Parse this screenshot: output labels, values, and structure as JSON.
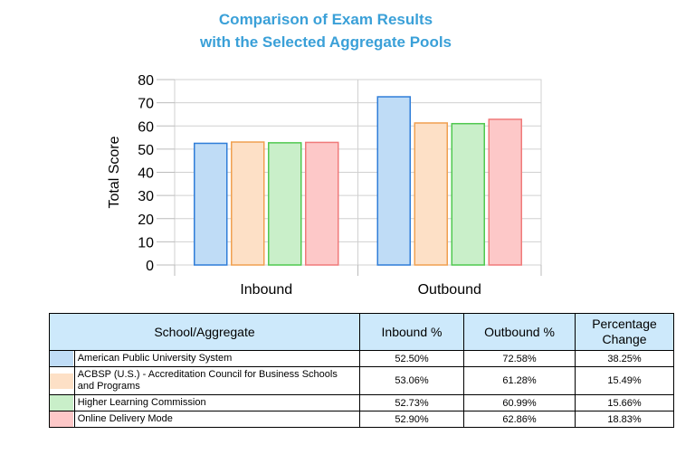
{
  "chart_data": {
    "type": "bar",
    "title_lines": [
      "Comparison of Exam Results",
      "with the Selected Aggregate Pools"
    ],
    "xlabel": "",
    "ylabel": "Total Score",
    "ylim": [
      0,
      80
    ],
    "yticks": [
      0,
      10,
      20,
      30,
      40,
      50,
      60,
      70,
      80
    ],
    "grid": true,
    "categories": [
      "Inbound",
      "Outbound"
    ],
    "series": [
      {
        "name": "American Public University System",
        "values": [
          52.5,
          72.58
        ],
        "fill": "#bfdcf6",
        "stroke": "#2f7dd8"
      },
      {
        "name": "ACBSP (U.S.) - Accreditation Council for Business Schools and Programs",
        "values": [
          53.06,
          61.28
        ],
        "fill": "#fde0c6",
        "stroke": "#f0a050"
      },
      {
        "name": "Higher Learning Commission",
        "values": [
          52.73,
          60.99
        ],
        "fill": "#c9efc9",
        "stroke": "#4fc84f"
      },
      {
        "name": "Online Delivery Mode",
        "values": [
          52.9,
          62.86
        ],
        "fill": "#fdc8c8",
        "stroke": "#f07a7a"
      }
    ]
  },
  "table": {
    "headers": [
      "School/Aggregate",
      "Inbound %",
      "Outbound %",
      "Percentage Change"
    ],
    "rows": [
      {
        "name": "American Public University System",
        "inbound": "52.50%",
        "outbound": "72.58%",
        "change": "38.25%"
      },
      {
        "name": "ACBSP (U.S.) - Accreditation Council for Business Schools and Programs",
        "inbound": "53.06%",
        "outbound": "61.28%",
        "change": "15.49%"
      },
      {
        "name": "Higher Learning Commission",
        "inbound": "52.73%",
        "outbound": "60.99%",
        "change": "15.66%"
      },
      {
        "name": "Online Delivery Mode",
        "inbound": "52.90%",
        "outbound": "62.86%",
        "change": "18.83%"
      }
    ]
  }
}
